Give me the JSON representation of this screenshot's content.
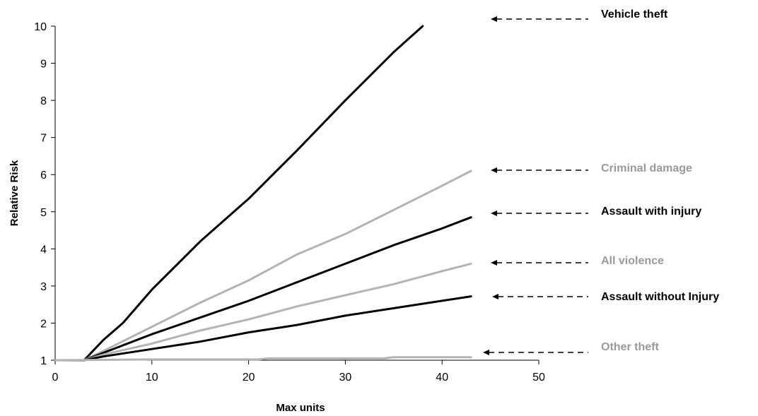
{
  "chart_data": {
    "type": "line",
    "xlabel": "Max units",
    "ylabel": "Relative Risk",
    "xlim": [
      0,
      50
    ],
    "ylim": [
      1,
      10
    ],
    "xticks": [
      0,
      10,
      20,
      30,
      40,
      50
    ],
    "yticks": [
      1,
      2,
      3,
      4,
      5,
      6,
      7,
      8,
      9,
      10
    ],
    "grid": false,
    "legend": "right, labels with dashed arrows pointing at line ends",
    "series": [
      {
        "name": "Vehicle theft",
        "color": "#000000",
        "x": [
          0,
          3,
          5,
          7,
          10,
          15,
          20,
          25,
          30,
          35,
          38
        ],
        "y": [
          1.0,
          1.0,
          1.55,
          2.0,
          2.9,
          4.2,
          5.35,
          6.65,
          8.0,
          9.3,
          10.0
        ]
      },
      {
        "name": "Criminal damage",
        "color": "#b3b3b3",
        "x": [
          0,
          3,
          5,
          10,
          15,
          20,
          25,
          30,
          35,
          40,
          43
        ],
        "y": [
          1.0,
          1.0,
          1.25,
          1.9,
          2.55,
          3.15,
          3.85,
          4.4,
          5.05,
          5.7,
          6.1
        ]
      },
      {
        "name": "Assault with injury",
        "color": "#000000",
        "x": [
          0,
          3,
          5,
          10,
          15,
          20,
          25,
          30,
          35,
          40,
          43
        ],
        "y": [
          1.0,
          1.0,
          1.2,
          1.7,
          2.15,
          2.6,
          3.1,
          3.6,
          4.1,
          4.55,
          4.85
        ]
      },
      {
        "name": "All violence",
        "color": "#b3b3b3",
        "x": [
          0,
          3,
          5,
          10,
          15,
          20,
          25,
          30,
          35,
          40,
          43
        ],
        "y": [
          1.0,
          1.0,
          1.15,
          1.45,
          1.8,
          2.1,
          2.45,
          2.75,
          3.05,
          3.4,
          3.6
        ]
      },
      {
        "name": "Assault without Injury",
        "color": "#000000",
        "x": [
          0,
          3,
          5,
          10,
          15,
          20,
          25,
          30,
          35,
          40,
          43
        ],
        "y": [
          1.0,
          1.0,
          1.1,
          1.3,
          1.5,
          1.75,
          1.95,
          2.2,
          2.4,
          2.6,
          2.72
        ]
      },
      {
        "name": "Other theft",
        "color": "#b3b3b3",
        "x": [
          0,
          10,
          21,
          22,
          34,
          35,
          43
        ],
        "y": [
          1.0,
          1.02,
          1.02,
          1.05,
          1.05,
          1.08,
          1.08
        ]
      }
    ],
    "colors": {
      "black_series": "#000000",
      "grey_series": "#b3b3b3",
      "grey_label": "#999999",
      "axis": "#000000"
    }
  }
}
